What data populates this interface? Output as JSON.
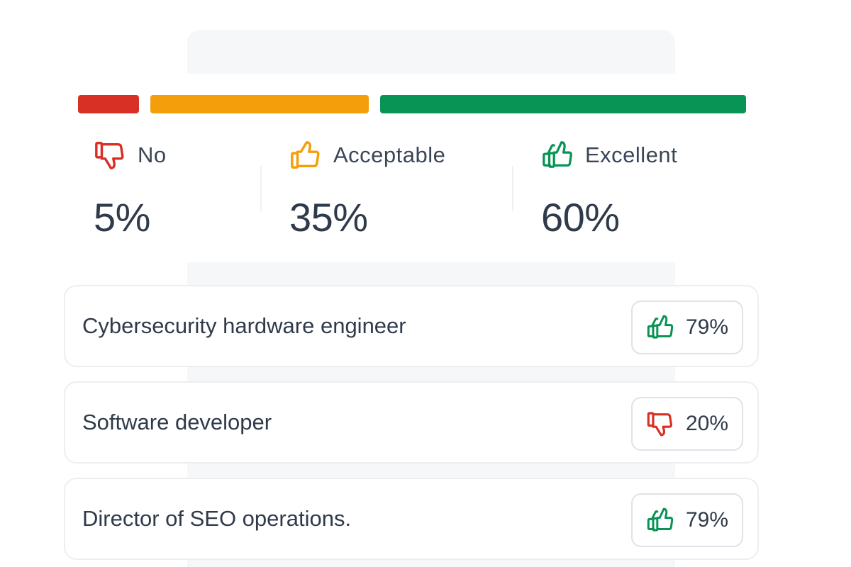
{
  "colors": {
    "no": "#d93025",
    "acceptable": "#f59e0b",
    "excellent": "#079455"
  },
  "summary": {
    "share_fractions": {
      "no": 0.05,
      "acceptable": 0.35,
      "excellent": 0.6
    },
    "no": {
      "label": "No",
      "value": "5%",
      "icon": "thumbs-down-icon"
    },
    "acceptable": {
      "label": "Acceptable",
      "value": "35%",
      "icon": "thumbs-up-icon"
    },
    "excellent": {
      "label": "Excellent",
      "value": "60%",
      "icon": "double-thumbs-up-icon"
    }
  },
  "roles": [
    {
      "title": "Cybersecurity hardware engineer",
      "score": "79%",
      "rating": "excellent",
      "icon": "double-thumbs-up-icon"
    },
    {
      "title": "Software developer",
      "score": "20%",
      "rating": "no",
      "icon": "thumbs-down-icon"
    },
    {
      "title": "Director of SEO operations.",
      "score": "79%",
      "rating": "excellent",
      "icon": "double-thumbs-up-icon"
    }
  ]
}
